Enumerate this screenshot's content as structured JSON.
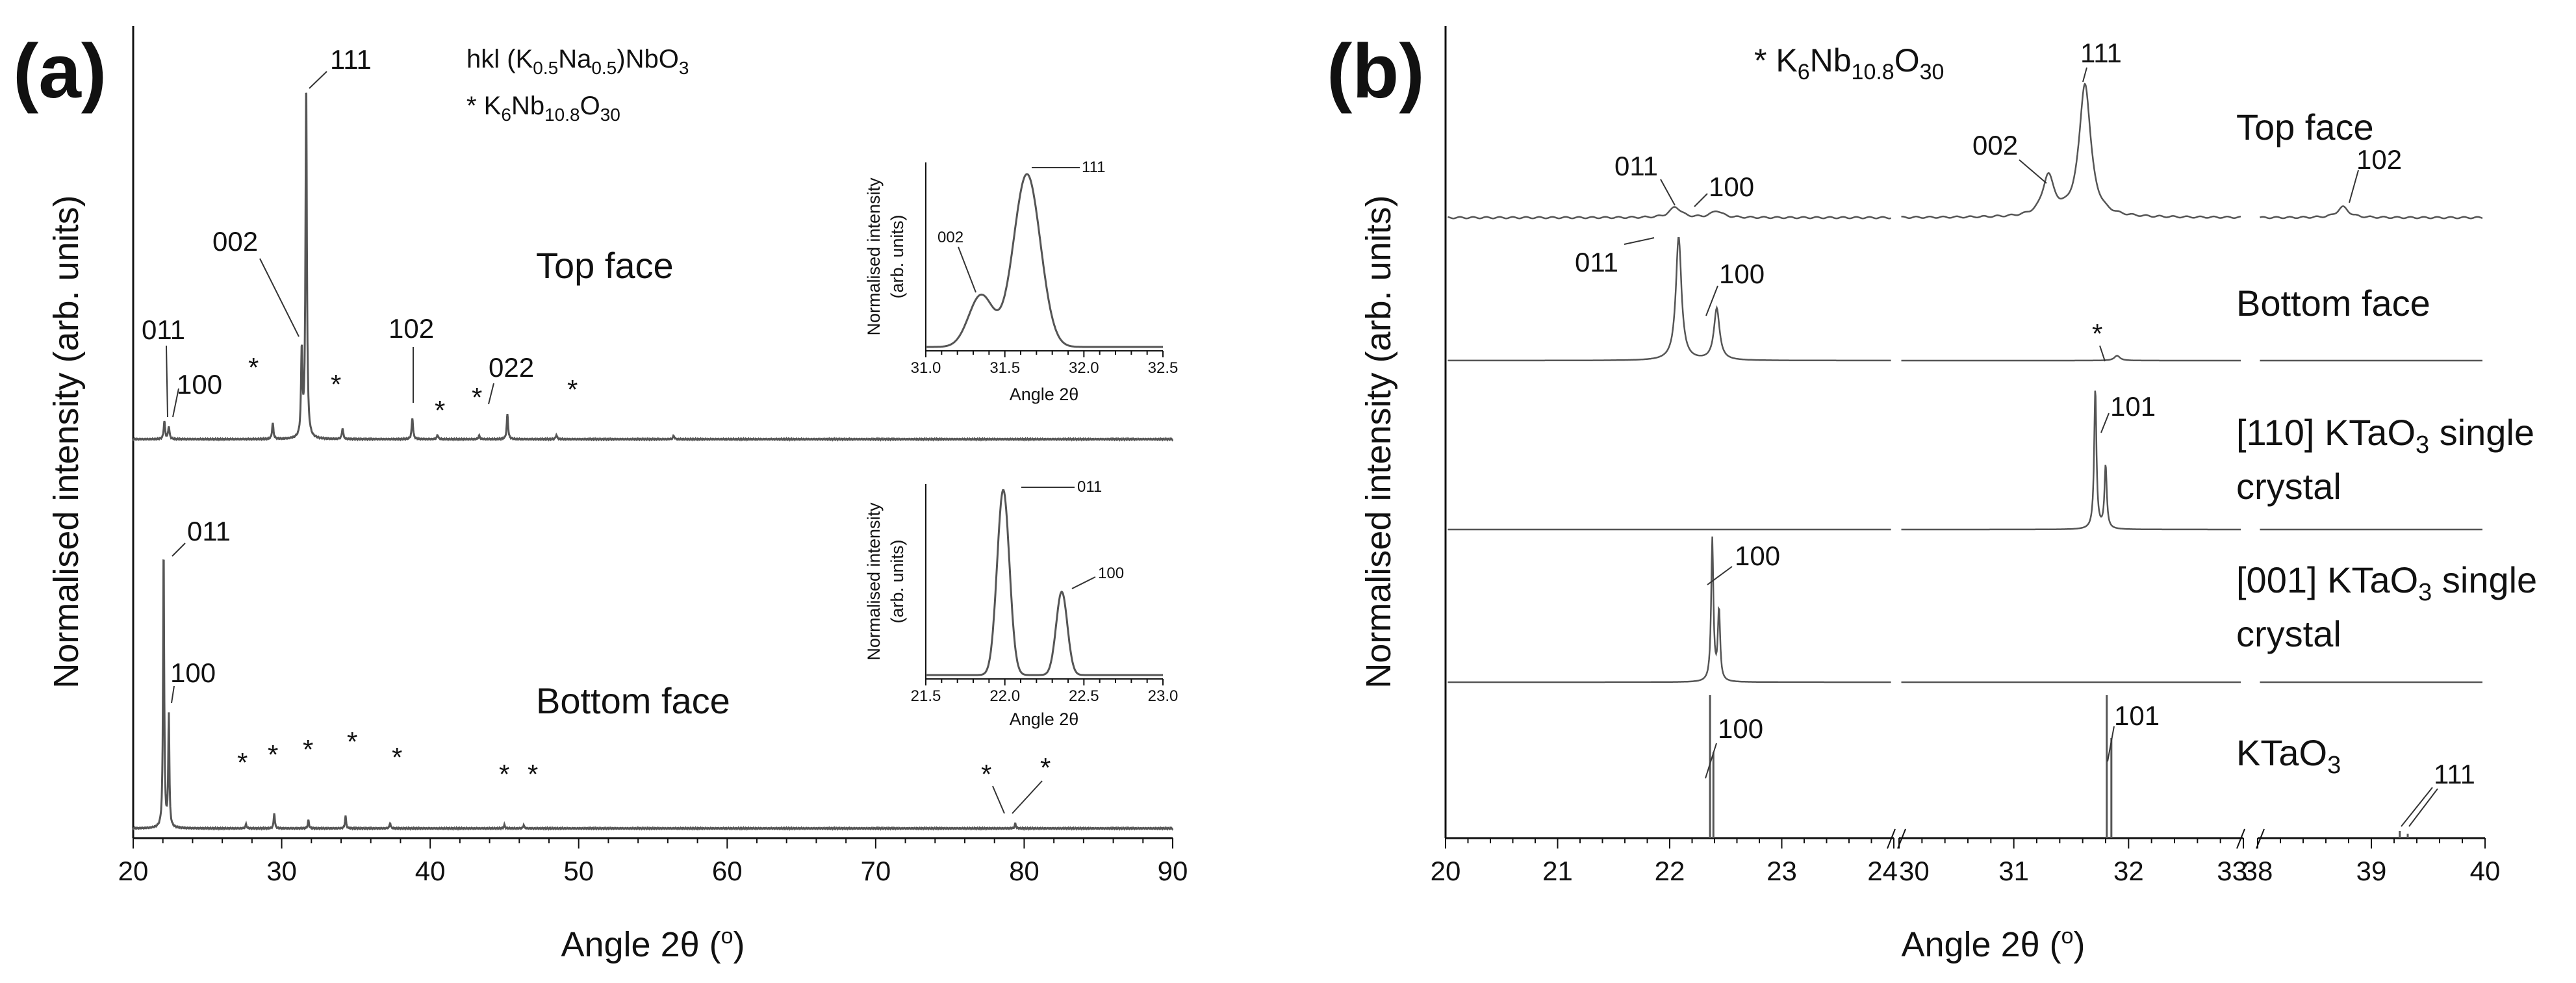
{
  "panel_a": {
    "letter": "(a)",
    "legend": {
      "hkl_prefix": "hkl (K",
      "hkl_sub1": "0.5",
      "hkl_mid": "Na",
      "hkl_sub2": "0.5",
      "hkl_suffix": ")NbO",
      "hkl_sub3": "3",
      "phase_prefix": "* K",
      "phase_sub1": "6",
      "phase_mid1": "Nb",
      "phase_sub2": "10.8",
      "phase_mid2": "O",
      "phase_sub3": "30"
    },
    "ylabel": "Normalised intensity (arb. units)",
    "xlabel_main": "Angle 2θ (",
    "xlabel_unit": "o",
    "xlabel_close": ")",
    "inset_top": {
      "ylabel_line1": "Normalised intensity",
      "ylabel_line2": "(arb. units)",
      "xlabel": "Angle 2θ",
      "peak_labels": [
        "002",
        "111"
      ],
      "xtick_labels": [
        "31.0",
        "31.5",
        "32.0",
        "32.5"
      ]
    },
    "inset_bottom": {
      "ylabel_line1": "Normalised intensity",
      "ylabel_line2": "(arb. units)",
      "xlabel": "Angle 2θ",
      "peak_labels": [
        "011",
        "100"
      ],
      "xtick_labels": [
        "21.5",
        "22.0",
        "22.5",
        "23.0"
      ]
    },
    "curve_labels": {
      "top": "Top face",
      "bottom": "Bottom face"
    },
    "peak_labels_top": [
      "011",
      "100",
      "002",
      "111",
      "102",
      "022"
    ],
    "peak_labels_bottom": [
      "011",
      "100"
    ],
    "star": "*"
  },
  "panel_b": {
    "letter": "(b)",
    "legend": {
      "prefix": "* K",
      "sub1": "6",
      "mid1": "Nb",
      "sub2": "10.8",
      "mid2": "O",
      "sub3": "30"
    },
    "ylabel": "Normalised intensity (arb. units)",
    "xlabel_main": "Angle 2θ (",
    "xlabel_unit": "o",
    "xlabel_close": ")",
    "curve_labels": {
      "top": "Top face",
      "bottom": "Bottom face",
      "k110_line1": "[110] KTaO",
      "k110_sub": "3",
      "k110_line1_end": " single",
      "k110_line2": "crystal",
      "k001_line1": "[001] KTaO",
      "k001_sub": "3",
      "k001_line1_end": " single",
      "k001_line2": "crystal",
      "kta": "KTaO",
      "kta_sub": "3"
    },
    "peak_labels": {
      "top": [
        "011",
        "100",
        "002",
        "111",
        "102"
      ],
      "bottom": [
        "011",
        "100"
      ],
      "k110": [
        "101"
      ],
      "k001": [
        "100"
      ],
      "kta": [
        "100",
        "101",
        "111"
      ]
    },
    "star": "*"
  },
  "chart_data": [
    {
      "type": "line",
      "title": "(a)",
      "xlabel": "Angle 2θ (o)",
      "ylabel": "Normalised intensity (arb. units)",
      "xlim": [
        20,
        90
      ],
      "xticks": [
        20,
        30,
        40,
        50,
        60,
        70,
        80,
        90
      ],
      "xtick_labels": [
        "20",
        "30",
        "40",
        "50",
        "60",
        "70",
        "80",
        "90"
      ],
      "series": [
        {
          "name": "Top face",
          "peaks": [
            {
              "x": 22.1,
              "h": 0.05
            },
            {
              "x": 22.4,
              "h": 0.035
            },
            {
              "x": 29.4,
              "h": 0.045
            },
            {
              "x": 31.35,
              "h": 0.24
            },
            {
              "x": 31.65,
              "h": 1.0
            },
            {
              "x": 34.1,
              "h": 0.03
            },
            {
              "x": 38.8,
              "h": 0.06
            },
            {
              "x": 40.5,
              "h": 0.012
            },
            {
              "x": 43.3,
              "h": 0.01
            },
            {
              "x": 45.2,
              "h": 0.07
            },
            {
              "x": 48.5,
              "h": 0.012
            },
            {
              "x": 56.4,
              "h": 0.01
            }
          ]
        },
        {
          "name": "Bottom face",
          "peaks": [
            {
              "x": 22.05,
              "h": 1.0
            },
            {
              "x": 22.4,
              "h": 0.4
            },
            {
              "x": 27.6,
              "h": 0.015
            },
            {
              "x": 29.5,
              "h": 0.055
            },
            {
              "x": 31.8,
              "h": 0.03
            },
            {
              "x": 34.3,
              "h": 0.045
            },
            {
              "x": 37.3,
              "h": 0.02
            },
            {
              "x": 45.0,
              "h": 0.012
            },
            {
              "x": 46.3,
              "h": 0.012
            },
            {
              "x": 79.4,
              "h": 0.018
            }
          ]
        }
      ],
      "insets": [
        {
          "for": "Top face",
          "xlim": [
            31.0,
            32.5
          ],
          "xlabel": "Angle 2θ",
          "ylabel": "Normalised intensity (arb. units)",
          "peaks": [
            {
              "x": 31.35,
              "h": 0.3,
              "w": 0.11
            },
            {
              "x": 31.64,
              "h": 1.0,
              "w": 0.12
            }
          ]
        },
        {
          "for": "Bottom face",
          "xlim": [
            21.5,
            23.0
          ],
          "xlabel": "Angle 2θ",
          "ylabel": "Normalised intensity (arb. units)",
          "peaks": [
            {
              "x": 21.99,
              "h": 1.0,
              "w": 0.055
            },
            {
              "x": 22.36,
              "h": 0.45,
              "w": 0.05
            }
          ]
        }
      ]
    },
    {
      "type": "line",
      "title": "(b)",
      "xlabel": "Angle 2θ (o)",
      "ylabel": "Normalised intensity (arb. units)",
      "broken_axis_segments": [
        {
          "xlim": [
            20,
            24
          ],
          "xticks": [
            20,
            21,
            22,
            23,
            24
          ]
        },
        {
          "xlim": [
            30,
            33
          ],
          "xticks": [
            30,
            31,
            32,
            33
          ]
        },
        {
          "xlim": [
            38,
            40
          ],
          "xticks": [
            38,
            39,
            40
          ]
        }
      ],
      "series": [
        {
          "name": "Top face",
          "peaks": [
            {
              "x": 22.05,
              "h": 0.08
            },
            {
              "x": 22.42,
              "h": 0.05
            },
            {
              "x": 31.3,
              "h": 0.3
            },
            {
              "x": 31.62,
              "h": 1.0
            },
            {
              "x": 38.75,
              "h": 0.08
            }
          ]
        },
        {
          "name": "Bottom face",
          "peaks": [
            {
              "x": 22.08,
              "h": 1.0
            },
            {
              "x": 22.42,
              "h": 0.42
            },
            {
              "x": 31.9,
              "h": 0.04
            }
          ]
        },
        {
          "name": "[110] KTaO3 single crystal",
          "peaks": [
            {
              "x": 31.71,
              "h": 1.0
            },
            {
              "x": 31.8,
              "h": 0.45
            }
          ]
        },
        {
          "name": "[001] KTaO3 single crystal",
          "peaks": [
            {
              "x": 22.38,
              "h": 1.0
            },
            {
              "x": 22.44,
              "h": 0.5
            }
          ]
        },
        {
          "name": "KTaO3",
          "type": "stick",
          "peaks": [
            {
              "x": 22.36,
              "h": 1.0
            },
            {
              "x": 22.39,
              "h": 0.6
            },
            {
              "x": 31.81,
              "h": 1.0
            },
            {
              "x": 31.85,
              "h": 0.7
            },
            {
              "x": 39.25,
              "h": 0.05
            },
            {
              "x": 39.32,
              "h": 0.03
            }
          ]
        }
      ]
    }
  ]
}
